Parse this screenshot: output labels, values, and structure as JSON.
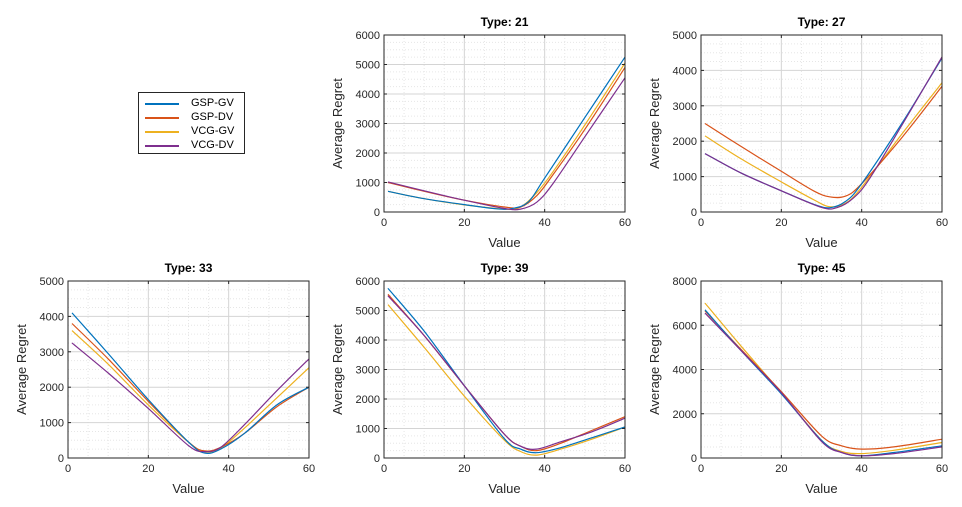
{
  "chart_data": [
    {
      "type": "line",
      "title": "Type: 21",
      "xlabel": "Value",
      "ylabel": "Average Regret",
      "xlim": [
        0,
        60
      ],
      "ylim": [
        0,
        6000
      ],
      "xticks": [
        0,
        20,
        40,
        60
      ],
      "yticks": [
        0,
        1000,
        2000,
        3000,
        4000,
        5000,
        6000
      ],
      "grid": true,
      "series": [
        {
          "name": "GSP-GV",
          "points": [
            [
              1,
              700
            ],
            [
              10,
              450
            ],
            [
              20,
              250
            ],
            [
              28,
              110
            ],
            [
              32,
              120
            ],
            [
              36,
              350
            ],
            [
              40,
              1150
            ],
            [
              50,
              3200
            ],
            [
              60,
              5250
            ]
          ]
        },
        {
          "name": "GSP-DV",
          "points": [
            [
              1,
              1000
            ],
            [
              10,
              700
            ],
            [
              20,
              400
            ],
            [
              30,
              170
            ],
            [
              34,
              170
            ],
            [
              38,
              550
            ],
            [
              42,
              1250
            ],
            [
              50,
              2800
            ],
            [
              60,
              4900
            ]
          ]
        },
        {
          "name": "VCG-GV",
          "points": [
            [
              1,
              700
            ],
            [
              10,
              450
            ],
            [
              20,
              240
            ],
            [
              30,
              100
            ],
            [
              34,
              170
            ],
            [
              38,
              650
            ],
            [
              42,
              1350
            ],
            [
              50,
              2950
            ],
            [
              60,
              5050
            ]
          ]
        },
        {
          "name": "VCG-DV",
          "points": [
            [
              1,
              1020
            ],
            [
              10,
              720
            ],
            [
              20,
              400
            ],
            [
              30,
              120
            ],
            [
              34,
              100
            ],
            [
              38,
              330
            ],
            [
              42,
              950
            ],
            [
              50,
              2550
            ],
            [
              60,
              4550
            ]
          ]
        }
      ]
    },
    {
      "type": "line",
      "title": "Type: 27",
      "xlabel": "Value",
      "ylabel": "Average Regret",
      "xlim": [
        0,
        60
      ],
      "ylim": [
        0,
        5000
      ],
      "xticks": [
        0,
        20,
        40,
        60
      ],
      "yticks": [
        0,
        1000,
        2000,
        3000,
        4000,
        5000
      ],
      "grid": true,
      "series": [
        {
          "name": "GSP-GV",
          "points": [
            [
              1,
              1650
            ],
            [
              10,
              1100
            ],
            [
              20,
              600
            ],
            [
              28,
              220
            ],
            [
              32,
              120
            ],
            [
              36,
              300
            ],
            [
              40,
              800
            ],
            [
              50,
              2500
            ],
            [
              60,
              4350
            ]
          ]
        },
        {
          "name": "GSP-DV",
          "points": [
            [
              1,
              2500
            ],
            [
              10,
              1850
            ],
            [
              20,
              1150
            ],
            [
              28,
              600
            ],
            [
              32,
              430
            ],
            [
              36,
              450
            ],
            [
              40,
              800
            ],
            [
              50,
              2100
            ],
            [
              60,
              3550
            ]
          ]
        },
        {
          "name": "VCG-GV",
          "points": [
            [
              1,
              2150
            ],
            [
              10,
              1500
            ],
            [
              20,
              850
            ],
            [
              28,
              350
            ],
            [
              32,
              150
            ],
            [
              36,
              250
            ],
            [
              40,
              700
            ],
            [
              50,
              2200
            ],
            [
              60,
              3650
            ]
          ]
        },
        {
          "name": "VCG-DV",
          "points": [
            [
              1,
              1650
            ],
            [
              10,
              1100
            ],
            [
              20,
              600
            ],
            [
              30,
              130
            ],
            [
              34,
              130
            ],
            [
              38,
              400
            ],
            [
              42,
              950
            ],
            [
              50,
              2450
            ],
            [
              60,
              4380
            ]
          ]
        }
      ]
    },
    {
      "type": "line",
      "title": "Type: 33",
      "xlabel": "Value",
      "ylabel": "Average Regret",
      "xlim": [
        0,
        60
      ],
      "ylim": [
        0,
        5000
      ],
      "xticks": [
        0,
        20,
        40,
        60
      ],
      "yticks": [
        0,
        1000,
        2000,
        3000,
        4000,
        5000
      ],
      "grid": true,
      "series": [
        {
          "name": "GSP-GV",
          "points": [
            [
              1,
              4100
            ],
            [
              10,
              2950
            ],
            [
              20,
              1650
            ],
            [
              30,
              450
            ],
            [
              34,
              140
            ],
            [
              38,
              250
            ],
            [
              44,
              700
            ],
            [
              52,
              1500
            ],
            [
              60,
              2000
            ]
          ]
        },
        {
          "name": "GSP-DV",
          "points": [
            [
              1,
              3800
            ],
            [
              10,
              2800
            ],
            [
              20,
              1600
            ],
            [
              30,
              450
            ],
            [
              34,
              200
            ],
            [
              38,
              300
            ],
            [
              44,
              700
            ],
            [
              52,
              1450
            ],
            [
              60,
              2000
            ]
          ]
        },
        {
          "name": "VCG-GV",
          "points": [
            [
              1,
              3600
            ],
            [
              10,
              2650
            ],
            [
              20,
              1500
            ],
            [
              30,
              450
            ],
            [
              34,
              180
            ],
            [
              38,
              280
            ],
            [
              44,
              850
            ],
            [
              52,
              1700
            ],
            [
              60,
              2550
            ]
          ]
        },
        {
          "name": "VCG-DV",
          "points": [
            [
              1,
              3250
            ],
            [
              10,
              2400
            ],
            [
              20,
              1400
            ],
            [
              30,
              350
            ],
            [
              34,
              180
            ],
            [
              38,
              300
            ],
            [
              44,
              950
            ],
            [
              52,
              1900
            ],
            [
              60,
              2800
            ]
          ]
        }
      ]
    },
    {
      "type": "line",
      "title": "Type: 39",
      "xlabel": "Value",
      "ylabel": "Average Regret",
      "xlim": [
        0,
        60
      ],
      "ylim": [
        0,
        6000
      ],
      "xticks": [
        0,
        20,
        40,
        60
      ],
      "yticks": [
        0,
        1000,
        2000,
        3000,
        4000,
        5000,
        6000
      ],
      "grid": true,
      "series": [
        {
          "name": "GSP-GV",
          "points": [
            [
              1,
              5750
            ],
            [
              10,
              4300
            ],
            [
              20,
              2450
            ],
            [
              30,
              650
            ],
            [
              34,
              300
            ],
            [
              38,
              180
            ],
            [
              44,
              350
            ],
            [
              52,
              700
            ],
            [
              60,
              1050
            ]
          ]
        },
        {
          "name": "GSP-DV",
          "points": [
            [
              1,
              5550
            ],
            [
              10,
              4150
            ],
            [
              20,
              2450
            ],
            [
              30,
              800
            ],
            [
              34,
              400
            ],
            [
              38,
              250
            ],
            [
              44,
              500
            ],
            [
              52,
              950
            ],
            [
              60,
              1400
            ]
          ]
        },
        {
          "name": "VCG-GV",
          "points": [
            [
              1,
              5200
            ],
            [
              10,
              3750
            ],
            [
              20,
              2100
            ],
            [
              30,
              600
            ],
            [
              34,
              220
            ],
            [
              38,
              100
            ],
            [
              44,
              300
            ],
            [
              52,
              650
            ],
            [
              60,
              1050
            ]
          ]
        },
        {
          "name": "VCG-DV",
          "points": [
            [
              1,
              5500
            ],
            [
              10,
              4150
            ],
            [
              20,
              2450
            ],
            [
              30,
              800
            ],
            [
              34,
              400
            ],
            [
              38,
              300
            ],
            [
              44,
              550
            ],
            [
              52,
              900
            ],
            [
              60,
              1350
            ]
          ]
        }
      ]
    },
    {
      "type": "line",
      "title": "Type: 45",
      "xlabel": "Value",
      "ylabel": "Average Regret",
      "xlim": [
        0,
        60
      ],
      "ylim": [
        0,
        8000
      ],
      "xticks": [
        0,
        20,
        40,
        60
      ],
      "yticks": [
        0,
        2000,
        4000,
        6000,
        8000
      ],
      "grid": true,
      "series": [
        {
          "name": "GSP-GV",
          "points": [
            [
              1,
              6700
            ],
            [
              10,
              4850
            ],
            [
              20,
              2900
            ],
            [
              30,
              800
            ],
            [
              35,
              250
            ],
            [
              40,
              100
            ],
            [
              48,
              250
            ],
            [
              60,
              550
            ]
          ]
        },
        {
          "name": "GSP-DV",
          "points": [
            [
              1,
              6650
            ],
            [
              10,
              4900
            ],
            [
              20,
              3000
            ],
            [
              30,
              1000
            ],
            [
              35,
              550
            ],
            [
              40,
              400
            ],
            [
              48,
              500
            ],
            [
              60,
              850
            ]
          ]
        },
        {
          "name": "VCG-GV",
          "points": [
            [
              1,
              7000
            ],
            [
              10,
              5050
            ],
            [
              20,
              2950
            ],
            [
              30,
              800
            ],
            [
              35,
              300
            ],
            [
              40,
              200
            ],
            [
              48,
              350
            ],
            [
              60,
              700
            ]
          ]
        },
        {
          "name": "VCG-DV",
          "points": [
            [
              1,
              6550
            ],
            [
              10,
              4850
            ],
            [
              20,
              2950
            ],
            [
              30,
              750
            ],
            [
              35,
              250
            ],
            [
              40,
              100
            ],
            [
              48,
              200
            ],
            [
              60,
              500
            ]
          ]
        }
      ]
    }
  ],
  "legend": {
    "entries": [
      "GSP-GV",
      "GSP-DV",
      "VCG-GV",
      "VCG-DV"
    ],
    "colors": [
      "#0072BD",
      "#D95319",
      "#EDB120",
      "#7E2F8E"
    ]
  }
}
